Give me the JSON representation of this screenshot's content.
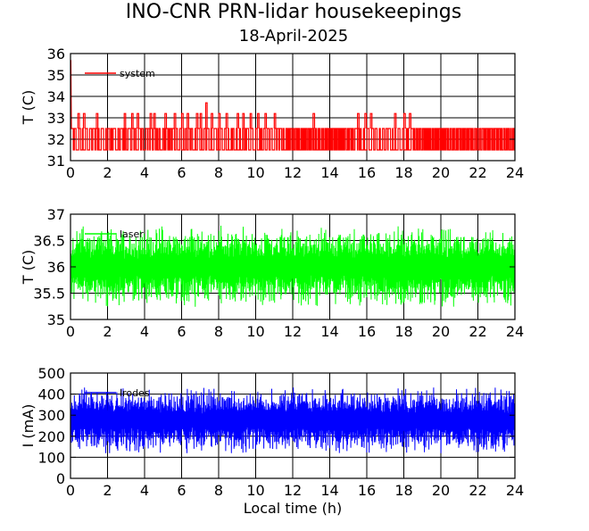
{
  "figure": {
    "title": "INO-CNR PRN-lidar housekeepings",
    "subtitle": "18-April-2025"
  },
  "chart_data": [
    {
      "type": "line",
      "xlabel": "",
      "ylabel": "T (C)",
      "xlim": [
        0,
        24
      ],
      "ylim": [
        31,
        36
      ],
      "x_ticks": [
        "0",
        "2",
        "4",
        "6",
        "8",
        "10",
        "12",
        "14",
        "16",
        "18",
        "20",
        "22",
        "24"
      ],
      "y_ticks": [
        "31",
        "32",
        "33",
        "34",
        "35",
        "36"
      ],
      "grid": true,
      "legend_position": "top-left",
      "series": [
        {
          "name": "system",
          "color": "#ff0000",
          "pattern": "two-level stepped signal switching between about 31.5 and 32.5 C, with occasional spikes to about 33.2 C (and 33.7 C near 7.3 h); brief start-up transient near 35.7 C at 0 h",
          "levels": [
            31.5,
            32.5
          ],
          "spike_level": 33.2,
          "spikes_x": [
            0.4,
            0.7,
            1.4,
            2.9,
            3.3,
            3.6,
            4.3,
            4.5,
            5.1,
            5.6,
            6.0,
            6.3,
            6.8,
            7.0,
            7.3,
            7.6,
            8.0,
            8.4,
            9.0,
            9.3,
            9.7,
            10.1,
            10.5,
            11.0,
            13.1,
            15.5,
            15.9,
            16.2,
            17.5,
            18.0,
            18.3
          ],
          "gaps_x": [
            [
              11.6,
              15.3
            ],
            [
              18.4,
              24.0
            ]
          ]
        }
      ]
    },
    {
      "type": "line",
      "xlabel": "",
      "ylabel": "T (C)",
      "xlim": [
        0,
        24
      ],
      "ylim": [
        35,
        37
      ],
      "x_ticks": [
        "0",
        "2",
        "4",
        "6",
        "8",
        "10",
        "12",
        "14",
        "16",
        "18",
        "20",
        "22",
        "24"
      ],
      "y_ticks": [
        "35",
        "35.5",
        "36",
        "36.5",
        "37"
      ],
      "grid": true,
      "legend_position": "top-left",
      "series": [
        {
          "name": "laser",
          "color": "#00ff00",
          "pattern": "oscillating signal centred at 36.0 C, envelope roughly 35.25 to 36.75 C, mean 36.0 C",
          "center": 36.0,
          "min": 35.2,
          "max": 36.8
        }
      ]
    },
    {
      "type": "line",
      "xlabel": "Local time (h)",
      "ylabel": "I (mA)",
      "xlim": [
        0,
        24
      ],
      "ylim": [
        0,
        500
      ],
      "x_ticks": [
        "0",
        "2",
        "4",
        "6",
        "8",
        "10",
        "12",
        "14",
        "16",
        "18",
        "20",
        "22",
        "24"
      ],
      "y_ticks": [
        "0",
        "100",
        "200",
        "300",
        "400",
        "500"
      ],
      "grid": true,
      "legend_position": "top-left",
      "series": [
        {
          "name": "lrodes",
          "color": "#0000ff",
          "pattern": "dense band between about 140 and 415 mA, mean about 275 mA",
          "center": 275,
          "min": 120,
          "max": 440
        }
      ]
    }
  ]
}
